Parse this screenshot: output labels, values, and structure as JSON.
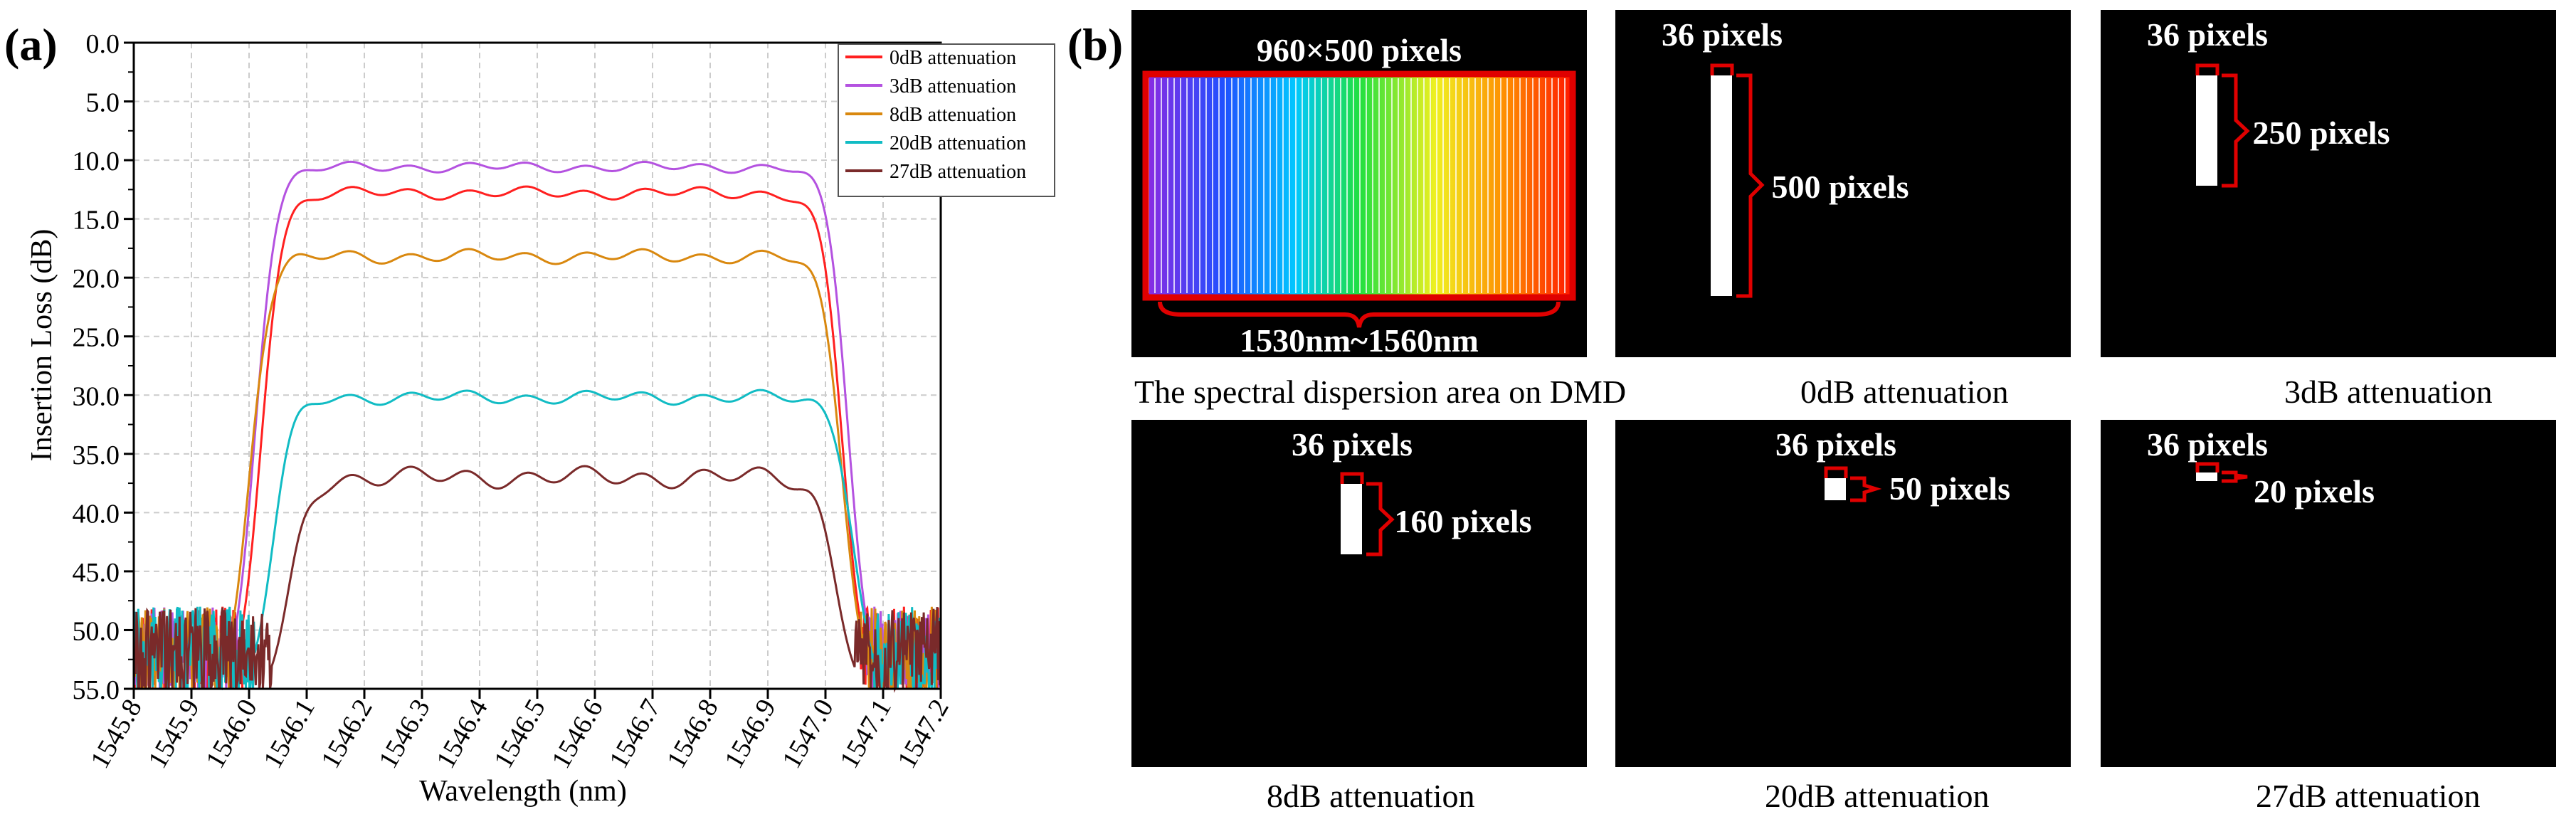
{
  "panel_labels": {
    "a": "(a)",
    "b": "(b)"
  },
  "chart_data": {
    "type": "line",
    "xlabel": "Wavelength (nm)",
    "ylabel": "Insertion Loss (dB)",
    "xlim": [
      1545.8,
      1547.2
    ],
    "ylim": [
      0,
      55
    ],
    "y_inverted": true,
    "grid": true,
    "legend_position": "top-right",
    "x_ticks": [
      "1545.8",
      "1545.9",
      "1546.0",
      "1546.1",
      "1546.2",
      "1546.3",
      "1546.4",
      "1546.5",
      "1546.6",
      "1546.7",
      "1546.8",
      "1546.9",
      "1547.0",
      "1547.1",
      "1547.2"
    ],
    "y_ticks": [
      "0.0",
      "5.0",
      "10.0",
      "15.0",
      "20.0",
      "25.0",
      "30.0",
      "35.0",
      "40.0",
      "45.0",
      "50.0",
      "55.0"
    ],
    "series": [
      {
        "name": "0dB attenuation",
        "color": "#ff2020",
        "plateau": 12.8,
        "ripple": 0.35,
        "edge_left": 1546.02,
        "edge_right": 1547.03
      },
      {
        "name": "3dB attenuation",
        "color": "#b452e0",
        "plateau": 10.6,
        "ripple": 0.3,
        "edge_left": 1546.01,
        "edge_right": 1547.04
      },
      {
        "name": "8dB attenuation",
        "color": "#d9880f",
        "plateau": 18.2,
        "ripple": 0.4,
        "edge_left": 1546.0,
        "edge_right": 1547.03
      },
      {
        "name": "20dB attenuation",
        "color": "#11bcc4",
        "plateau": 30.2,
        "ripple": 0.4,
        "edge_left": 1546.04,
        "edge_right": 1547.05
      },
      {
        "name": "27dB attenuation",
        "color": "#7a2a2a",
        "plateau": 37.0,
        "ripple": 0.6,
        "edge_left": 1546.07,
        "edge_right": 1547.02
      }
    ]
  },
  "dmd_panels": [
    {
      "key": "area",
      "caption": "The spectral dispersion area on DMD",
      "labels": [
        "960×500 pixels",
        "1530nm~1560nm"
      ]
    },
    {
      "key": "0db",
      "caption": "0dB attenuation",
      "width_label": "36 pixels",
      "height_label": "500 pixels"
    },
    {
      "key": "3db",
      "caption": "3dB attenuation",
      "width_label": "36 pixels",
      "height_label": "250 pixels"
    },
    {
      "key": "8db",
      "caption": "8dB attenuation",
      "width_label": "36 pixels",
      "height_label": "160 pixels"
    },
    {
      "key": "20db",
      "caption": "20dB attenuation",
      "width_label": "36 pixels",
      "height_label": "50 pixels"
    },
    {
      "key": "27db",
      "caption": "27dB attenuation",
      "width_label": "36 pixels",
      "height_label": "20 pixels"
    }
  ]
}
